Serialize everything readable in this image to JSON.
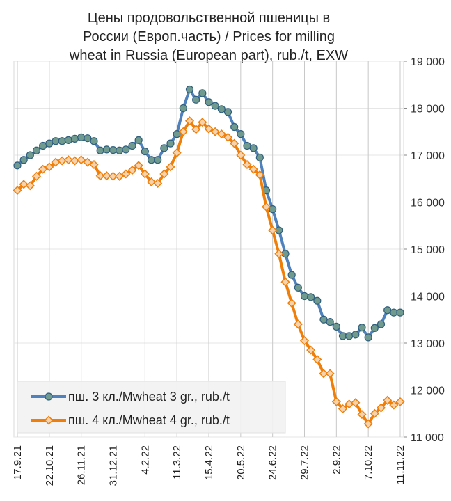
{
  "chart_data": {
    "type": "line",
    "title": [
      "Цены продовольственной пшеницы в",
      "России (Европ.часть) / Prices for milling",
      "wheat in Russia (European part), rub./t, EXW"
    ],
    "categories": [
      "17.9.21",
      null,
      null,
      null,
      null,
      "22.10.21",
      null,
      null,
      null,
      null,
      "26.11.21",
      null,
      null,
      null,
      null,
      "31.12.21",
      null,
      null,
      null,
      null,
      "4.2.22",
      null,
      null,
      null,
      null,
      "11.3.22",
      null,
      null,
      null,
      null,
      "15.4.22",
      null,
      null,
      null,
      null,
      "20.5.22",
      null,
      null,
      null,
      null,
      "24.6.22",
      null,
      null,
      null,
      null,
      "29.7.22",
      null,
      null,
      null,
      null,
      "2.9.22",
      null,
      null,
      null,
      null,
      "7.10.22",
      null,
      null,
      null,
      null,
      "11.11.22"
    ],
    "series": [
      {
        "name": "пш. 3 кл./Mwheat 3 gr., rub./t",
        "color": "#4f81bd",
        "values": [
          16780,
          16900,
          17000,
          17100,
          17200,
          17250,
          17300,
          17300,
          17320,
          17350,
          17380,
          17360,
          17300,
          17100,
          17120,
          17110,
          17100,
          17120,
          17200,
          17320,
          17080,
          16900,
          16900,
          17150,
          17250,
          17450,
          18000,
          18400,
          18180,
          18320,
          18130,
          18050,
          17980,
          17920,
          17600,
          17450,
          17200,
          17150,
          16950,
          16250,
          15850,
          15400,
          14900,
          14450,
          14180,
          14000,
          13980,
          13900,
          13500,
          13450,
          13350,
          13150,
          13150,
          13180,
          13330,
          13120,
          13320,
          13400,
          13700,
          13650,
          13650
        ]
      },
      {
        "name": "пш. 4 кл./Mwheat 4 gr., rub./t",
        "color": "#f07f09",
        "values": [
          16250,
          16380,
          16350,
          16550,
          16700,
          16750,
          16850,
          16880,
          16900,
          16880,
          16900,
          16850,
          16800,
          16560,
          16560,
          16550,
          16550,
          16600,
          16680,
          16780,
          16600,
          16430,
          16400,
          16600,
          16750,
          17050,
          17500,
          17730,
          17550,
          17700,
          17560,
          17500,
          17450,
          17380,
          17250,
          17000,
          16800,
          16700,
          16580,
          15900,
          15400,
          14900,
          14300,
          13850,
          13400,
          13050,
          12850,
          12650,
          12350,
          12350,
          11750,
          11600,
          11700,
          11730,
          11480,
          11280,
          11500,
          11620,
          11780,
          11680,
          11750
        ]
      }
    ],
    "ylim": [
      11000,
      19000
    ],
    "yticks": [
      {
        "value": 11000,
        "label": "11 000"
      },
      {
        "value": 12000,
        "label": "12 000"
      },
      {
        "value": 13000,
        "label": "13 000"
      },
      {
        "value": 14000,
        "label": "14 000"
      },
      {
        "value": 15000,
        "label": "15 000"
      },
      {
        "value": 16000,
        "label": "16 000"
      },
      {
        "value": 17000,
        "label": "17 000"
      },
      {
        "value": 18000,
        "label": "18 000"
      },
      {
        "value": 19000,
        "label": "19 000"
      }
    ],
    "grid": true,
    "legend": "lower left"
  }
}
